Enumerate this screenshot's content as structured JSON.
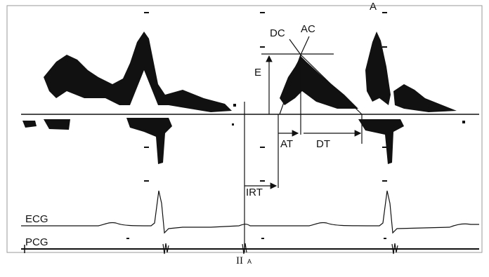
{
  "labels": {
    "dc": "DC",
    "ac": "AC",
    "a": "A",
    "e": "E",
    "at": "AT",
    "dt": "DT",
    "irt": "IRT",
    "ecg": "ECG",
    "pcg": "PCG",
    "second_sound": "II",
    "second_sound_sub": "A"
  }
}
